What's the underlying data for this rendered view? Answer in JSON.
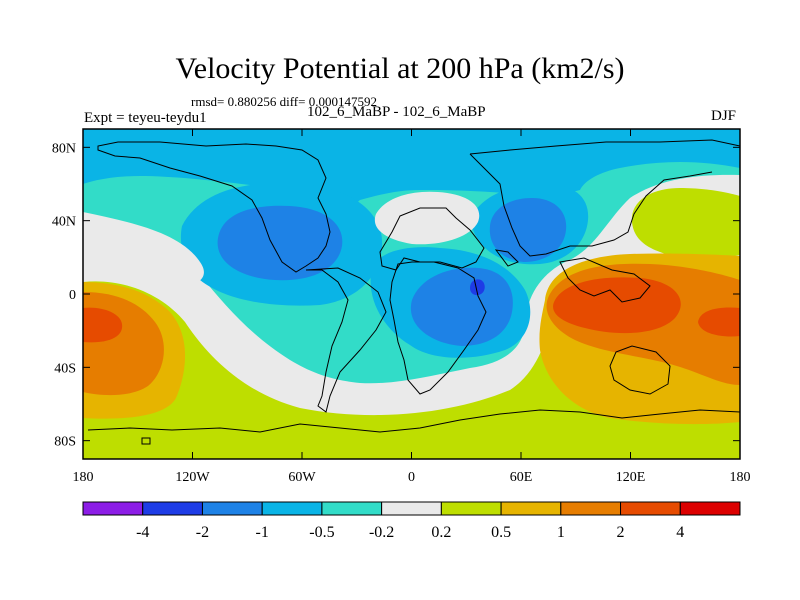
{
  "chart_data": {
    "type": "contour-map",
    "title": "Velocity Potential at 200 hPa (km2/s)",
    "stats": "rmsd= 0.880256 diff= 0.000147592",
    "left_label": "Expt = teyeu-teydu1",
    "center_label": "102_6_MaBP - 102_6_MaBP",
    "right_label": "DJF",
    "xlim": [
      -180,
      180
    ],
    "ylim": [
      -90,
      90
    ],
    "x_ticks": [
      {
        "value": -180,
        "label": "180"
      },
      {
        "value": -120,
        "label": "120W"
      },
      {
        "value": -60,
        "label": "60W"
      },
      {
        "value": 0,
        "label": "0"
      },
      {
        "value": 60,
        "label": "60E"
      },
      {
        "value": 120,
        "label": "120E"
      },
      {
        "value": 180,
        "label": "180"
      }
    ],
    "y_ticks": [
      {
        "value": 80,
        "label": "80N"
      },
      {
        "value": 40,
        "label": "40N"
      },
      {
        "value": 0,
        "label": "0"
      },
      {
        "value": -40,
        "label": "40S"
      },
      {
        "value": -80,
        "label": "80S"
      }
    ],
    "colorbar": {
      "colors": [
        "#8c1de6",
        "#1e3ce6",
        "#1e82e6",
        "#0ab4e6",
        "#32dcc8",
        "#eaeaea",
        "#bede00",
        "#e6b400",
        "#e67d00",
        "#e64b00",
        "#dc0000"
      ],
      "labels": [
        "-4",
        "-2",
        "-1",
        "-0.5",
        "-0.2",
        "0.2",
        "0.5",
        "1",
        "2",
        "4"
      ]
    }
  }
}
